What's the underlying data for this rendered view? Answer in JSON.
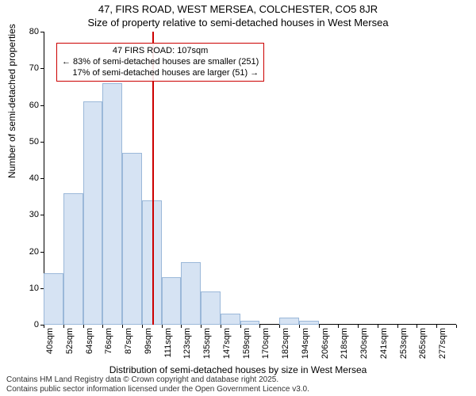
{
  "title_main": "47, FIRS ROAD, WEST MERSEA, COLCHESTER, CO5 8JR",
  "title_sub": "Size of property relative to semi-detached houses in West Mersea",
  "y_axis_label": "Number of semi-detached properties",
  "x_axis_label": "Distribution of semi-detached houses by size in West Mersea",
  "footer_line1": "Contains HM Land Registry data © Crown copyright and database right 2025.",
  "footer_line2": "Contains public sector information licensed under the Open Government Licence v3.0.",
  "chart": {
    "type": "histogram",
    "background_color": "#ffffff",
    "bar_fill": "#d6e3f3",
    "bar_stroke": "#9bb8d9",
    "bar_stroke_width": 1,
    "ylim": [
      0,
      80
    ],
    "ytick_step": 10,
    "x_categories": [
      "40sqm",
      "52sqm",
      "64sqm",
      "76sqm",
      "87sqm",
      "99sqm",
      "111sqm",
      "123sqm",
      "135sqm",
      "147sqm",
      "159sqm",
      "170sqm",
      "182sqm",
      "194sqm",
      "206sqm",
      "218sqm",
      "230sqm",
      "241sqm",
      "253sqm",
      "265sqm",
      "277sqm"
    ],
    "values": [
      14,
      36,
      61,
      66,
      47,
      34,
      13,
      17,
      9,
      3,
      1,
      0,
      2,
      1,
      0,
      0,
      0,
      0,
      0,
      0,
      0
    ],
    "axis_color": "#000000",
    "tick_fontsize": 11,
    "label_fontsize": 12,
    "title_fontsize": 13
  },
  "reference_line": {
    "x_value_sqm": 107,
    "color": "#cc0000",
    "width": 2
  },
  "annotation": {
    "border_color": "#cc0000",
    "text_color": "#000000",
    "line1": "47 FIRS ROAD: 107sqm",
    "line2": "← 83% of semi-detached houses are smaller (251)",
    "line3": "17% of semi-detached houses are larger (51) →"
  }
}
